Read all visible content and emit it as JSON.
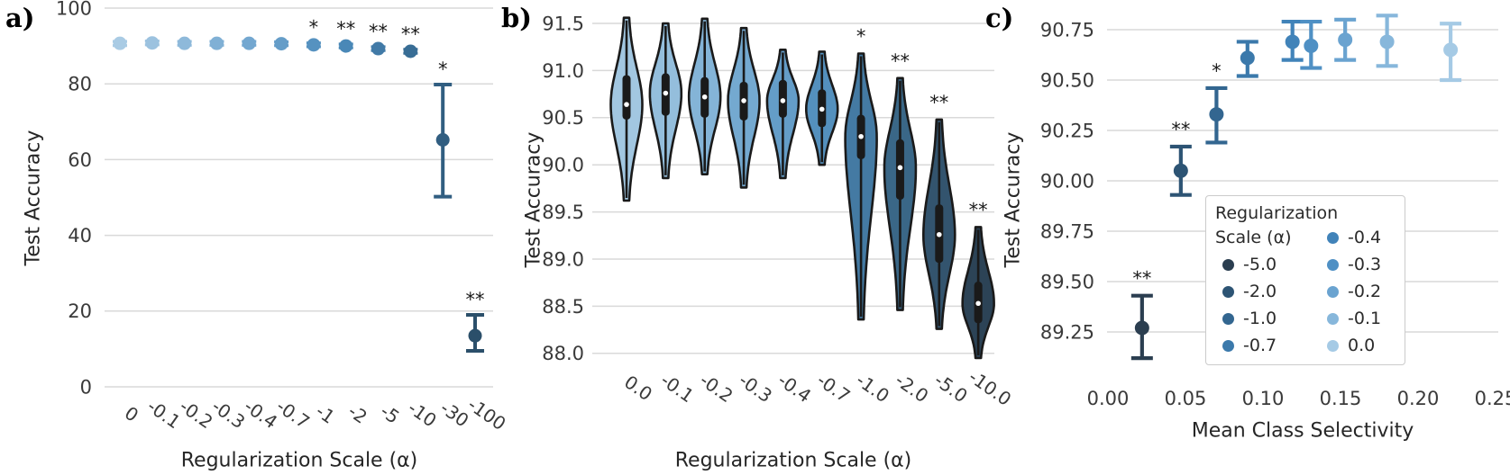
{
  "panels": [
    {
      "letter": "a)"
    },
    {
      "letter": "b)"
    },
    {
      "letter": "c)"
    }
  ],
  "colors": {
    "grid": "#d9d9d9",
    "tick_text": "#3a3a3a",
    "label_text": "#262626",
    "violin_edge": "#1a1a1a",
    "median_dot": "#ffffff",
    "significance": "#1a1a1a",
    "legend_border": "#cbcbcb",
    "background": "#ffffff"
  },
  "chart_data": [
    {
      "type": "errorbar-categorical",
      "xlabel": "Regularization Scale (α)",
      "ylabel": "Test Accuracy",
      "categories": [
        "0",
        "-0.1",
        "-0.2",
        "-0.3",
        "-0.4",
        "-0.7",
        "-1",
        "-2",
        "-5",
        "-10",
        "-30",
        "-100"
      ],
      "values": [
        90.7,
        90.8,
        90.7,
        90.7,
        90.7,
        90.6,
        90.3,
        90.0,
        89.3,
        88.6,
        65.2,
        13.5
      ],
      "err_low": [
        90.1,
        90.3,
        90.2,
        90.2,
        90.2,
        90.1,
        89.8,
        89.5,
        88.8,
        88.1,
        50.2,
        9.5
      ],
      "err_high": [
        91.2,
        91.3,
        91.2,
        91.2,
        91.2,
        91.1,
        90.8,
        90.5,
        89.8,
        89.1,
        79.8,
        19.0
      ],
      "significance": [
        "",
        "",
        "",
        "",
        "",
        "",
        "*",
        "**",
        "**",
        "**",
        "*",
        "**"
      ],
      "point_colors": [
        "#a9cbe4",
        "#9cc2df",
        "#8eb9da",
        "#80b0d5",
        "#73a7d0",
        "#659dc8",
        "#5692c0",
        "#4a88b7",
        "#417aa7",
        "#386d95",
        "#315e81",
        "#2b4f6a"
      ],
      "yticks": [
        "0",
        "20",
        "40",
        "60",
        "80",
        "100"
      ],
      "ylim": [
        0,
        100
      ],
      "grid": true,
      "legend_position": "none"
    },
    {
      "type": "violin",
      "xlabel": "Regularization Scale (α)",
      "ylabel": "Test Accuracy",
      "categories": [
        "0.0",
        "-0.1",
        "-0.2",
        "-0.3",
        "-0.4",
        "-0.7",
        "-1.0",
        "-2.0",
        "-5.0",
        "-10.0"
      ],
      "medians": [
        90.64,
        90.76,
        90.72,
        90.68,
        90.68,
        90.59,
        90.3,
        89.97,
        89.26,
        88.53
      ],
      "q1": [
        90.48,
        90.52,
        90.5,
        90.47,
        90.5,
        90.4,
        90.06,
        89.63,
        88.96,
        88.32
      ],
      "q3": [
        90.95,
        90.97,
        90.93,
        90.88,
        90.9,
        90.8,
        90.53,
        90.27,
        89.58,
        88.76
      ],
      "whisker_low": [
        89.62,
        89.86,
        89.9,
        89.76,
        89.86,
        90.0,
        88.36,
        88.46,
        88.26,
        87.95
      ],
      "whisker_high": [
        91.56,
        91.5,
        91.55,
        91.45,
        91.22,
        91.2,
        91.18,
        90.92,
        90.48,
        89.34
      ],
      "significance": [
        "",
        "",
        "",
        "",
        "",
        "",
        "*",
        "**",
        "**",
        "**"
      ],
      "violin_colors": [
        "#a2c7e1",
        "#94bedc",
        "#84b4d7",
        "#74a9d0",
        "#649dc8",
        "#5490bd",
        "#447aa3",
        "#3a6787",
        "#33546e",
        "#2c4356"
      ],
      "yticks": [
        "91.5",
        "91.0",
        "90.5",
        "90.0",
        "89.5",
        "89.0",
        "88.5",
        "88.0"
      ],
      "ylim": [
        87.9,
        91.6
      ],
      "grid": true
    },
    {
      "type": "scatter-errorbar",
      "xlabel": "Mean Class Selectivity",
      "ylabel": "Test Accuracy",
      "series": [
        {
          "alpha": "-5.0",
          "x": 0.022,
          "y": 89.27,
          "err_low": 89.12,
          "err_high": 89.43,
          "significance": "**",
          "color": "#2b3e50"
        },
        {
          "alpha": "-2.0",
          "x": 0.047,
          "y": 90.05,
          "err_low": 89.93,
          "err_high": 90.17,
          "significance": "**",
          "color": "#2d5474"
        },
        {
          "alpha": "-1.0",
          "x": 0.07,
          "y": 90.33,
          "err_low": 90.19,
          "err_high": 90.46,
          "significance": "*",
          "color": "#336690"
        },
        {
          "alpha": "-0.7",
          "x": 0.09,
          "y": 90.61,
          "err_low": 90.52,
          "err_high": 90.69,
          "significance": "",
          "color": "#3b79ab"
        },
        {
          "alpha": "-0.4",
          "x": 0.119,
          "y": 90.69,
          "err_low": 90.6,
          "err_high": 90.79,
          "significance": "",
          "color": "#4183b9"
        },
        {
          "alpha": "-0.3",
          "x": 0.131,
          "y": 90.67,
          "err_low": 90.56,
          "err_high": 90.79,
          "significance": "",
          "color": "#4f90c4"
        },
        {
          "alpha": "-0.2",
          "x": 0.153,
          "y": 90.7,
          "err_low": 90.6,
          "err_high": 90.8,
          "significance": "",
          "color": "#6aa3d0"
        },
        {
          "alpha": "-0.1",
          "x": 0.18,
          "y": 90.69,
          "err_low": 90.57,
          "err_high": 90.82,
          "significance": "",
          "color": "#87b7db"
        },
        {
          "alpha": "0.0",
          "x": 0.221,
          "y": 90.65,
          "err_low": 90.5,
          "err_high": 90.78,
          "significance": "",
          "color": "#a5cae5"
        }
      ],
      "xticks": [
        "0.00",
        "0.05",
        "0.10",
        "0.15",
        "0.20",
        "0.25"
      ],
      "yticks": [
        "90.75",
        "90.50",
        "90.25",
        "90.00",
        "89.75",
        "89.50",
        "89.25"
      ],
      "xlim": [
        0,
        0.252
      ],
      "ylim": [
        89.0,
        90.9
      ],
      "grid": true,
      "legend_position": "lower right"
    }
  ],
  "legend": {
    "title_line1": "Regularization",
    "title_line2": "Scale (α)",
    "column1": [
      {
        "label": "-5.0",
        "color": "#2b3e50"
      },
      {
        "label": "-2.0",
        "color": "#2d5474"
      },
      {
        "label": "-1.0",
        "color": "#336690"
      },
      {
        "label": "-0.7",
        "color": "#3b79ab"
      }
    ],
    "column2": [
      {
        "label": "-0.4",
        "color": "#4183b9"
      },
      {
        "label": "-0.3",
        "color": "#4f90c4"
      },
      {
        "label": "-0.2",
        "color": "#6aa3d0"
      },
      {
        "label": "-0.1",
        "color": "#87b7db"
      },
      {
        "label": "0.0",
        "color": "#a5cae5"
      }
    ]
  }
}
